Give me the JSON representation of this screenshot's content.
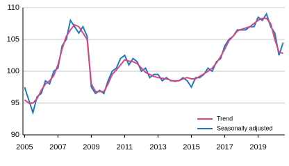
{
  "chart_data": {
    "type": "line",
    "x": [
      2005,
      2005.25,
      2005.5,
      2005.75,
      2006,
      2006.25,
      2006.5,
      2006.75,
      2007,
      2007.25,
      2007.5,
      2007.75,
      2008,
      2008.25,
      2008.5,
      2008.75,
      2009,
      2009.25,
      2009.5,
      2009.75,
      2010,
      2010.25,
      2010.5,
      2010.75,
      2011,
      2011.25,
      2011.5,
      2011.75,
      2012,
      2012.25,
      2012.5,
      2012.75,
      2013,
      2013.25,
      2013.5,
      2013.75,
      2014,
      2014.25,
      2014.5,
      2014.75,
      2015,
      2015.25,
      2015.5,
      2015.75,
      2016,
      2016.25,
      2016.5,
      2016.75,
      2017,
      2017.25,
      2017.5,
      2017.75,
      2018,
      2018.25,
      2018.5,
      2018.75,
      2019,
      2019.25,
      2019.5,
      2019.75,
      2020,
      2020.25,
      2020.5
    ],
    "series": [
      {
        "name": "Trend",
        "color": "#d94683",
        "values": [
          95.5,
          95,
          95,
          95.7,
          97,
          98,
          98.5,
          99.3,
          101,
          103.5,
          105.5,
          106.5,
          107.3,
          107,
          106,
          105,
          98,
          96.8,
          96.8,
          96.8,
          98,
          99.5,
          100.2,
          101,
          101.8,
          101.6,
          101.5,
          101.2,
          100.5,
          99.8,
          99.5,
          99.2,
          99,
          98.9,
          98.8,
          98.6,
          98.4,
          98.5,
          98.8,
          99,
          98.8,
          98.8,
          99.2,
          99.6,
          100,
          100.5,
          101.3,
          102.3,
          103.5,
          104.8,
          105.5,
          106.3,
          106.6,
          106.8,
          107,
          107.5,
          108,
          108.3,
          108.3,
          107.5,
          105,
          103,
          102.8
        ]
      },
      {
        "name": "Seasonally adjusted",
        "color": "#1f7bbf",
        "values": [
          97.5,
          95.5,
          93.5,
          96,
          96.5,
          98.5,
          98,
          100,
          100.5,
          104,
          105,
          108,
          107,
          106,
          107,
          105.5,
          97.5,
          96.5,
          97,
          96.5,
          98.5,
          100,
          100.5,
          102,
          102.5,
          101,
          102,
          101.5,
          100,
          100.5,
          99,
          99.5,
          99.5,
          98.5,
          99,
          98.5,
          98.5,
          98.5,
          99,
          98.5,
          97.5,
          99,
          99,
          99.5,
          100.5,
          100,
          101.5,
          102,
          104,
          105,
          105.5,
          106.5,
          106.5,
          106.5,
          107,
          107,
          108.5,
          108,
          109,
          107,
          106,
          102.5,
          104.5
        ]
      }
    ],
    "xlim": [
      2004.9,
      2020.6
    ],
    "xticks": [
      2005,
      2007,
      2009,
      2011,
      2013,
      2015,
      2017,
      2019
    ],
    "ylim": [
      90,
      110
    ],
    "yticks": [
      90,
      95,
      100,
      105,
      110
    ],
    "grid": true,
    "legend": "lower right"
  }
}
